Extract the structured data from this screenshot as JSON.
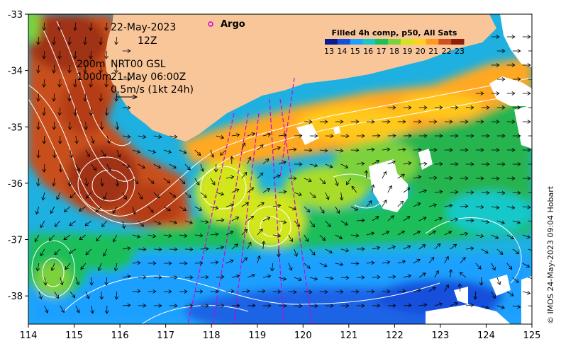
{
  "map": {
    "lon_range": [
      114,
      125
    ],
    "lat_range": [
      -38.5,
      -33
    ],
    "x_ticks": [
      "114",
      "115",
      "116",
      "117",
      "118",
      "119",
      "120",
      "121",
      "122",
      "123",
      "124",
      "125"
    ],
    "y_ticks": [
      "-33",
      "-34",
      "-35",
      "-36",
      "-37",
      "-38"
    ],
    "colors": {
      "land": "#f9c699",
      "missing": "#ffffff",
      "contour": "#ffffff",
      "argo_track": "#d400d4",
      "arrow": "#000000"
    }
  },
  "overlay": {
    "date": "22-May-2023",
    "hour": "12Z",
    "depth_200m": "200m",
    "depth_1000m": "1000m",
    "product": "NRT00 GSL",
    "altimetry_time": "21-May 06:00Z",
    "scale_label": "0.5m/s (1kt 24h)",
    "argo_label": "Argo"
  },
  "colorbar": {
    "title": "Filled 4h comp, p50, All Sats",
    "labels": [
      "13",
      "14",
      "15",
      "16",
      "17",
      "18",
      "19",
      "20",
      "21",
      "22",
      "23"
    ],
    "colors": [
      "#0a1a8c",
      "#1450dc",
      "#1ea0ff",
      "#16c8c8",
      "#1ebe5a",
      "#7cd23c",
      "#d2e61e",
      "#ffd21e",
      "#ff9a1e",
      "#d2501e",
      "#8c1e0a"
    ]
  },
  "credit": "© IMOS 24-May-2023 09:04 Hobart"
}
